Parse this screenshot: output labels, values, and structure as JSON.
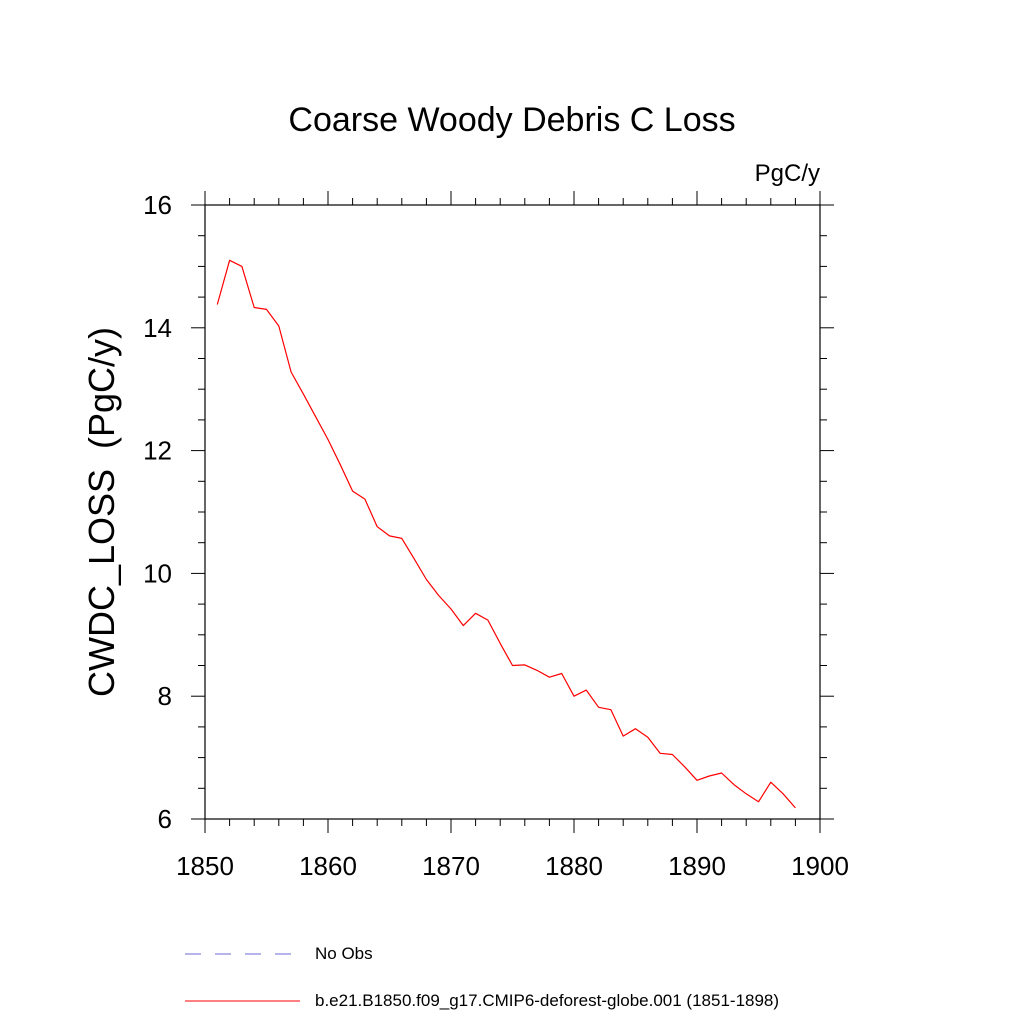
{
  "chart_data": {
    "type": "line",
    "title": "Coarse Woody Debris C Loss",
    "units": "PgC/y",
    "ylabel": "CWDC_LOSS  (PgC/y)",
    "xlabel": "",
    "xlim": [
      1850,
      1900
    ],
    "ylim": [
      6,
      16
    ],
    "xticks": [
      1850,
      1860,
      1870,
      1880,
      1890,
      1900
    ],
    "yticks": [
      6,
      8,
      10,
      12,
      14,
      16
    ],
    "grid": false,
    "legend_position": "bottom",
    "series": [
      {
        "name": "b.e21.B1850.f09_g17.CMIP6-deforest-globe.001 (1851-1898)",
        "color": "#ff0000",
        "style": "solid",
        "x": [
          1851,
          1852,
          1853,
          1854,
          1855,
          1856,
          1857,
          1858,
          1859,
          1860,
          1861,
          1862,
          1863,
          1864,
          1865,
          1866,
          1867,
          1868,
          1869,
          1870,
          1871,
          1872,
          1873,
          1874,
          1875,
          1876,
          1877,
          1878,
          1879,
          1880,
          1881,
          1882,
          1883,
          1884,
          1885,
          1886,
          1887,
          1888,
          1889,
          1890,
          1891,
          1892,
          1893,
          1894,
          1895,
          1896,
          1897,
          1898
        ],
        "values": [
          14.38,
          15.1,
          15.0,
          14.33,
          14.3,
          14.03,
          13.28,
          12.92,
          12.55,
          12.18,
          11.77,
          11.34,
          11.21,
          10.76,
          10.61,
          10.57,
          10.24,
          9.9,
          9.64,
          9.42,
          9.15,
          9.35,
          9.24,
          8.86,
          8.5,
          8.51,
          8.42,
          8.31,
          8.37,
          8.0,
          8.1,
          7.82,
          7.78,
          7.35,
          7.47,
          7.33,
          7.07,
          7.05,
          6.85,
          6.63,
          6.7,
          6.75,
          6.56,
          6.41,
          6.28,
          6.6,
          6.41,
          6.18
        ]
      },
      {
        "name": "No Obs",
        "color": "#6b6bd6",
        "style": "dashed",
        "x": [],
        "values": []
      }
    ]
  }
}
